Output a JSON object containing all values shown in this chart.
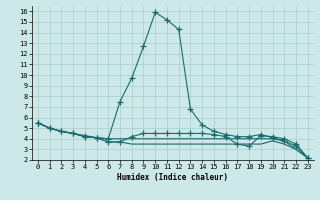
{
  "xlabel": "Humidex (Indice chaleur)",
  "xlim": [
    -0.5,
    23.5
  ],
  "ylim": [
    2,
    16.5
  ],
  "xticks": [
    0,
    1,
    2,
    3,
    4,
    5,
    6,
    7,
    8,
    9,
    10,
    11,
    12,
    13,
    14,
    15,
    16,
    17,
    18,
    19,
    20,
    21,
    22,
    23
  ],
  "yticks": [
    2,
    3,
    4,
    5,
    6,
    7,
    8,
    9,
    10,
    11,
    12,
    13,
    14,
    15,
    16
  ],
  "bg_color": "#cce8e8",
  "line_color": "#1a6b6b",
  "grid_color": "#aacccc",
  "lines": [
    {
      "x": [
        0,
        1,
        2,
        3,
        4,
        5,
        6,
        7,
        8,
        9,
        10,
        11,
        12,
        13,
        14,
        15,
        16,
        17,
        18,
        19,
        20,
        21,
        22,
        23
      ],
      "y": [
        5.5,
        5.0,
        4.7,
        4.5,
        4.3,
        4.1,
        4.0,
        7.5,
        9.7,
        12.7,
        15.9,
        15.2,
        14.3,
        6.8,
        5.3,
        4.7,
        4.4,
        4.2,
        4.2,
        4.4,
        4.1,
        3.8,
        3.3,
        2.2
      ],
      "marker": true
    },
    {
      "x": [
        0,
        1,
        2,
        3,
        4,
        5,
        6,
        7,
        8,
        9,
        10,
        11,
        12,
        13,
        14,
        15,
        16,
        17,
        18,
        19,
        20,
        21,
        22,
        23
      ],
      "y": [
        5.5,
        5.0,
        4.7,
        4.5,
        4.2,
        4.1,
        4.0,
        4.0,
        4.0,
        4.0,
        4.0,
        4.0,
        4.0,
        4.0,
        4.0,
        4.0,
        4.0,
        4.0,
        4.0,
        4.0,
        4.0,
        3.8,
        3.0,
        2.2
      ],
      "marker": false
    },
    {
      "x": [
        0,
        1,
        2,
        3,
        4,
        5,
        6,
        7,
        8,
        9,
        10,
        11,
        12,
        13,
        14,
        15,
        16,
        17,
        18,
        19,
        20,
        21,
        22,
        23
      ],
      "y": [
        5.5,
        5.0,
        4.7,
        4.5,
        4.2,
        4.1,
        3.7,
        3.7,
        3.5,
        3.5,
        3.5,
        3.5,
        3.5,
        3.5,
        3.5,
        3.5,
        3.5,
        3.5,
        3.5,
        3.5,
        3.8,
        3.5,
        3.0,
        2.2
      ],
      "marker": false
    },
    {
      "x": [
        0,
        1,
        2,
        3,
        4,
        5,
        6,
        7,
        8,
        9,
        10,
        11,
        12,
        13,
        14,
        15,
        16,
        17,
        18,
        19,
        20,
        21,
        22,
        23
      ],
      "y": [
        5.5,
        5.0,
        4.7,
        4.5,
        4.2,
        4.1,
        3.7,
        3.7,
        4.2,
        4.5,
        4.5,
        4.5,
        4.5,
        4.5,
        4.5,
        4.4,
        4.2,
        3.5,
        3.3,
        4.3,
        4.2,
        4.0,
        3.5,
        2.2
      ],
      "marker": true
    }
  ]
}
